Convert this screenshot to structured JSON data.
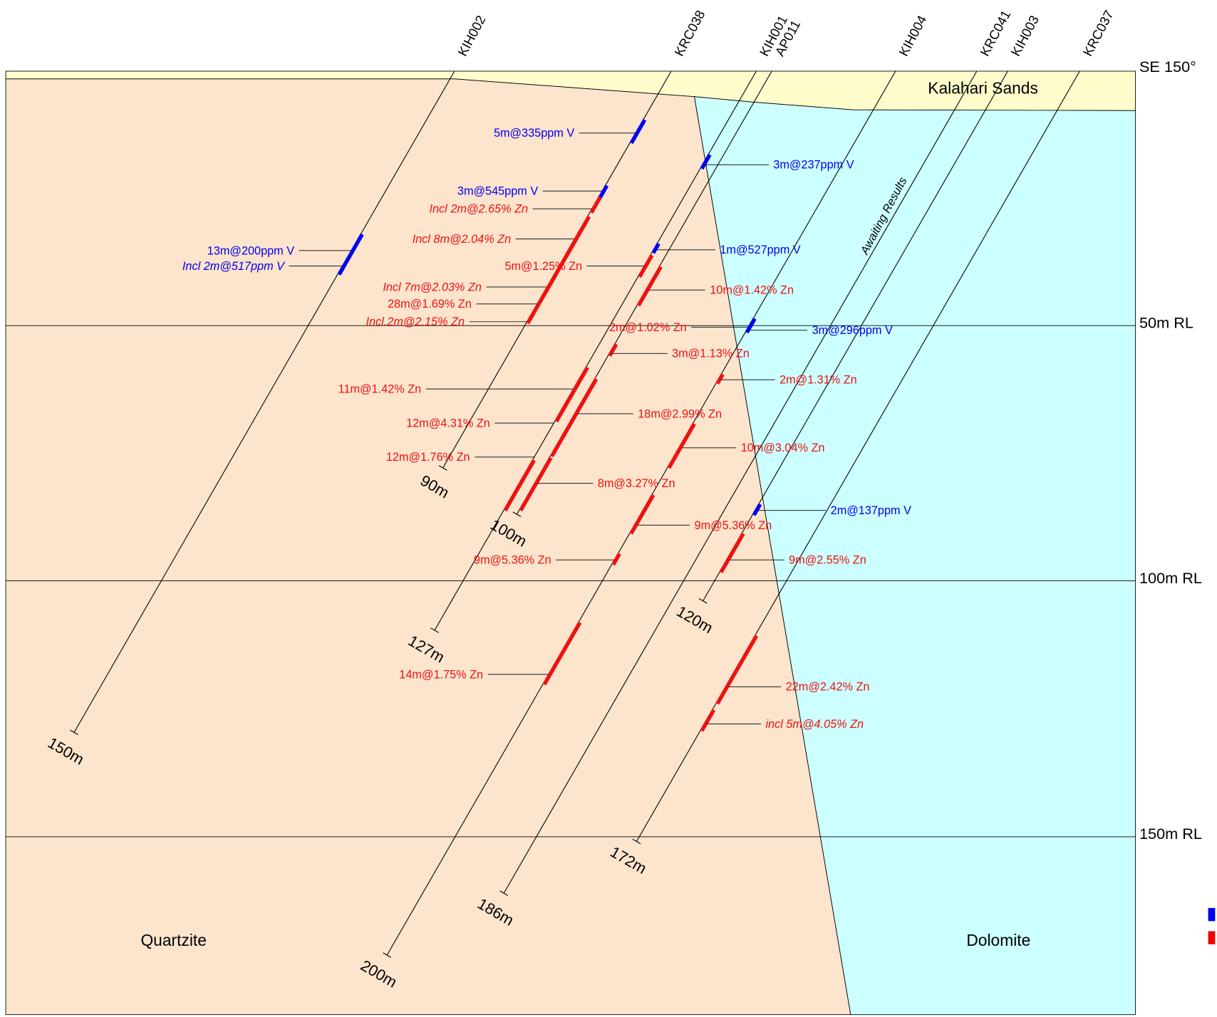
{
  "section_label": "SE 150°",
  "rl_labels": [
    "50m RL",
    "100m RL",
    "150m RL"
  ],
  "units": [
    "Kalahari Sands",
    "Quartzite",
    "Dolomite"
  ],
  "note": "Awaiting Results",
  "holes": [
    {
      "name": "KIH002",
      "depth": "150m"
    },
    {
      "name": "KRC038",
      "depth": "90m"
    },
    {
      "name": "KIH001",
      "depth": "127m"
    },
    {
      "name": "AP011",
      "depth": "100m"
    },
    {
      "name": "KIH004",
      "depth": "200m"
    },
    {
      "name": "KRC041",
      "depth": "186m"
    },
    {
      "name": "KIH003",
      "depth": "120m"
    },
    {
      "name": "KRC037",
      "depth": "172m"
    }
  ],
  "intercepts": [
    {
      "label": "5m@335ppm V"
    },
    {
      "label": "3m@545ppm V"
    },
    {
      "label": "Incl 2m@2.65% Zn"
    },
    {
      "label": "Incl 8m@2.04% Zn"
    },
    {
      "label": "5m@1.25% Zn"
    },
    {
      "label": "Incl 7m@2.03% Zn"
    },
    {
      "label": "28m@1.69% Zn"
    },
    {
      "label": "Incl.2m@2.15% Zn"
    },
    {
      "label": "13m@200ppm V"
    },
    {
      "label": "Incl 2m@517ppm V"
    },
    {
      "label": "1m@527ppm V"
    },
    {
      "label": "10m@1.42% Zn"
    },
    {
      "label": "3m@237ppm V"
    },
    {
      "label": "2m@1.02% Zn"
    },
    {
      "label": "3m@296ppm V"
    },
    {
      "label": "3m@1.13% Zn"
    },
    {
      "label": "2m@1.31% Zn"
    },
    {
      "label": "11m@1.42% Zn"
    },
    {
      "label": "12m@4.31% Zn"
    },
    {
      "label": "18m@2.99% Zn"
    },
    {
      "label": "10m@3.04% Zn"
    },
    {
      "label": "12m@1.76% Zn"
    },
    {
      "label": "8m@3.27% Zn"
    },
    {
      "label": "2m@137ppm V"
    },
    {
      "label": "9m@5.36% Zn"
    },
    {
      "label": "9m@5.36% Zn"
    },
    {
      "label": "9m@2.55% Zn"
    },
    {
      "label": "14m@1.75% Zn"
    },
    {
      "label": "22m@2.42% Zn"
    },
    {
      "label": "incl 5m@4.05% Zn"
    }
  ]
}
